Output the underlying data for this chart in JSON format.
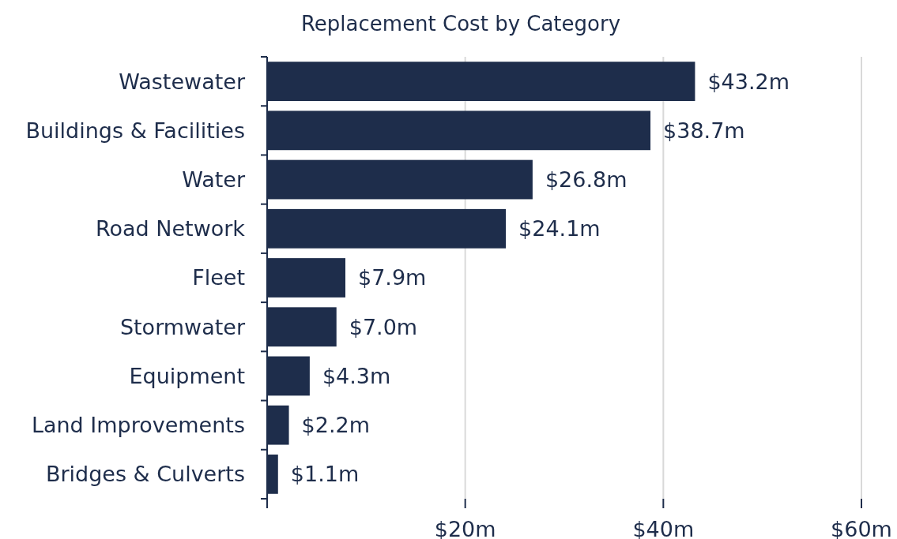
{
  "chart_data": {
    "type": "bar",
    "orientation": "horizontal",
    "title": "Replacement Cost by Category",
    "categories": [
      "Wastewater",
      "Buildings & Facilities",
      "Water",
      "Road Network",
      "Fleet",
      "Stormwater",
      "Equipment",
      "Land Improvements",
      "Bridges & Culverts"
    ],
    "values": [
      43.2,
      38.7,
      26.8,
      24.1,
      7.9,
      7.0,
      4.3,
      2.2,
      1.1
    ],
    "value_labels": [
      "$43.2m",
      "$38.7m",
      "$26.8m",
      "$24.1m",
      "$7.9m",
      "$7.0m",
      "$4.3m",
      "$2.2m",
      "$1.1m"
    ],
    "color": "#1e2d4b",
    "xlim": [
      0,
      60
    ],
    "xticks": [
      {
        "value": 0,
        "label": null
      },
      {
        "value": 20,
        "label": "$20m"
      },
      {
        "value": 40,
        "label": "$40m"
      },
      {
        "value": 60,
        "label": "$60m"
      }
    ],
    "grid": "x"
  }
}
